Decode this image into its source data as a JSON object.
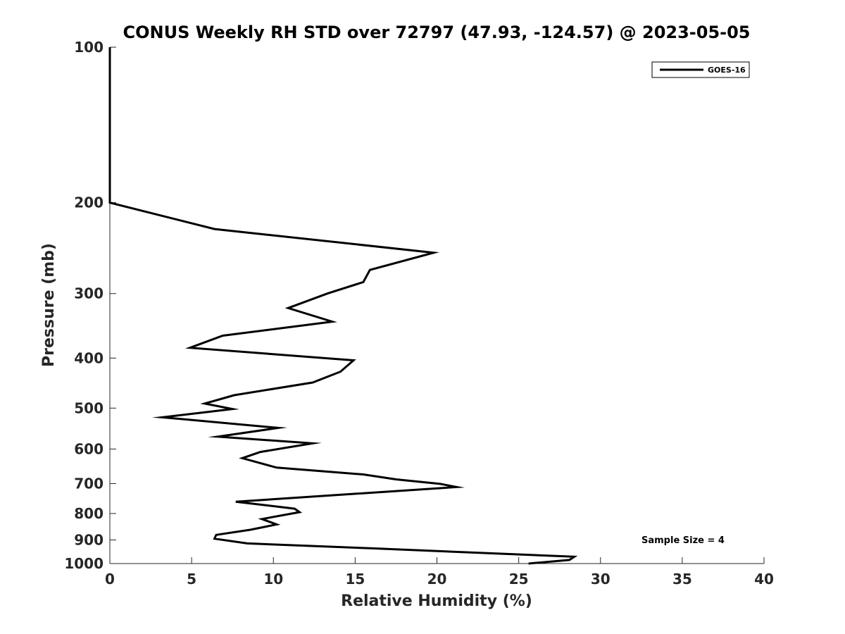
{
  "chart_data": {
    "type": "line",
    "title": "CONUS Weekly RH STD over 72797 (47.93, -124.57) @ 2023-05-05",
    "xlabel": "Relative Humidity (%)",
    "ylabel": "Pressure (mb)",
    "xlim": [
      0,
      40
    ],
    "ylim": [
      1000,
      100
    ],
    "y_scale": "log",
    "grid": false,
    "legend_position": "top-right",
    "x_ticks": [
      "0",
      "5",
      "10",
      "15",
      "20",
      "25",
      "30",
      "35",
      "40"
    ],
    "y_ticks": [
      "100",
      "200",
      "300",
      "400",
      "500",
      "600",
      "700",
      "800",
      "900",
      "1000"
    ],
    "annotation": "Sample Size = 4",
    "series": [
      {
        "name": "GOES-16",
        "color": "#000000",
        "points": [
          [
            0,
            100
          ],
          [
            0,
            200
          ],
          [
            6.4,
            225
          ],
          [
            19.8,
            250
          ],
          [
            15.9,
            270
          ],
          [
            15.5,
            285
          ],
          [
            13.3,
            300
          ],
          [
            10.9,
            320
          ],
          [
            13.6,
            340
          ],
          [
            6.9,
            362
          ],
          [
            4.9,
            382
          ],
          [
            14.9,
            404
          ],
          [
            14.1,
            425
          ],
          [
            12.4,
            446
          ],
          [
            7.6,
            472
          ],
          [
            5.8,
            490
          ],
          [
            7.5,
            502
          ],
          [
            3.2,
            521
          ],
          [
            10.3,
            546
          ],
          [
            6.6,
            568
          ],
          [
            12.4,
            585
          ],
          [
            9.2,
            608
          ],
          [
            8.1,
            625
          ],
          [
            10.2,
            652
          ],
          [
            15.5,
            672
          ],
          [
            17.5,
            687
          ],
          [
            20.2,
            701
          ],
          [
            21.2,
            711
          ],
          [
            7.7,
            759
          ],
          [
            11.3,
            783
          ],
          [
            11.6,
            795
          ],
          [
            9.3,
            820
          ],
          [
            10.2,
            840
          ],
          [
            8.6,
            860
          ],
          [
            6.5,
            880
          ],
          [
            6.4,
            895
          ],
          [
            8.4,
            914
          ],
          [
            15.9,
            934
          ],
          [
            28.4,
            970
          ],
          [
            28.1,
            984
          ],
          [
            25.6,
            1000
          ]
        ]
      }
    ]
  }
}
